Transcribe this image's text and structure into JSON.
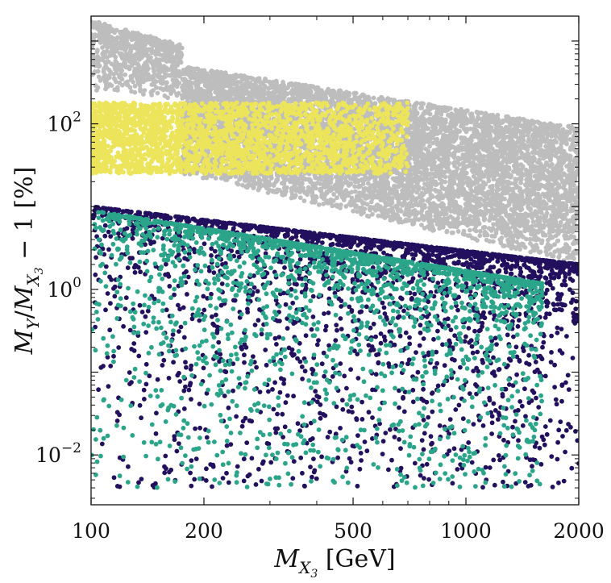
{
  "chart_data": {
    "type": "scatter",
    "xscale": "log",
    "yscale": "log",
    "xlim": [
      100,
      2000
    ],
    "ylim": [
      0.0025,
      2000
    ],
    "xlabel": "M_{X_3} [GeV]",
    "ylabel": "M_Y/M_{X_3} − 1 [%]",
    "xticks": [
      100,
      200,
      500,
      1000,
      2000
    ],
    "xtick_labels": [
      "100",
      "200",
      "500",
      "1000",
      "2000"
    ],
    "yticks": [
      0.01,
      1,
      100
    ],
    "ytick_labels": [
      {
        "base": "10",
        "exp": "−2"
      },
      {
        "base": "10",
        "exp": "0"
      },
      {
        "base": "10",
        "exp": "2"
      }
    ],
    "colors": {
      "gray": "#bdbdbd",
      "yellow": "#ece45a",
      "navy": "#22105e",
      "teal": "#2aa58a"
    },
    "series": [
      {
        "name": "gray-region",
        "color": "#bdbdbd",
        "points": 7600,
        "description_regions": [
          {
            "x_range": [
              100,
              175
            ],
            "y_at_xmin": [
              300,
              1800
            ],
            "y_at_xmax": [
              200,
              1000
            ]
          },
          {
            "x_range": [
              175,
              2000
            ],
            "y_at_xmin": [
              30,
              500
            ],
            "y_at_xmax": [
              2,
              90
            ]
          }
        ]
      },
      {
        "name": "yellow-region",
        "color": "#ece45a",
        "points": 2600,
        "x_range": [
          100,
          700
        ],
        "y_range": [
          25,
          180
        ]
      },
      {
        "name": "navy-region",
        "color": "#22105e",
        "points": 2400,
        "x_range": [
          100,
          2000
        ],
        "y_upper_at_xmin": 10,
        "y_upper_at_xmax": 2,
        "y_min": 0.004
      },
      {
        "name": "teal-region",
        "color": "#2aa58a",
        "points": 2200,
        "x_range": [
          100,
          1600
        ],
        "y_upper_at_xmin": 9,
        "y_upper_at_xmax": 1,
        "y_min": 0.004
      }
    ]
  }
}
